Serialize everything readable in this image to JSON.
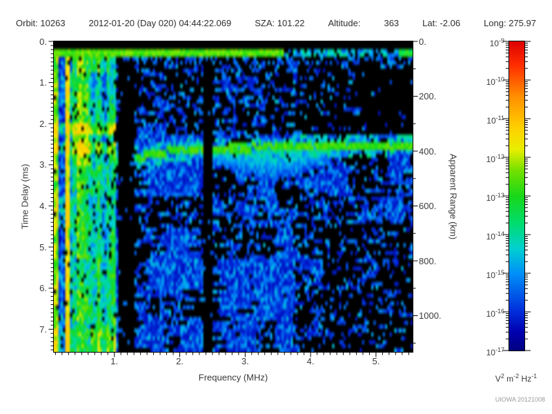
{
  "header": {
    "segments": [
      "Orbit: 10263",
      "2012-01-20 (Day 020) 04:44:22.069",
      "SZA: 101.22",
      "Altitude:",
      "363",
      "Lat: -2.06",
      "Long: 275.97"
    ]
  },
  "credit": "UIOWA 20121008",
  "chart_data": {
    "type": "heatmap",
    "title": "",
    "xlabel": "Frequency (MHz)",
    "ylabel_left": "Time Delay (ms)",
    "ylabel_right": "Apparent Range (km)",
    "colorbar_units_parts": [
      [
        "V",
        "2"
      ],
      [
        "m",
        "-2"
      ],
      [
        "Hz",
        "-1"
      ]
    ],
    "xlim_mhz": [
      0.075,
      5.56
    ],
    "ylim_ms": [
      0,
      7.55
    ],
    "y2lim_km": [
      0,
      1132
    ],
    "x_ticks": {
      "major": [
        1,
        2,
        3,
        4,
        5
      ],
      "labels": [
        "1.",
        "2.",
        "3.",
        "4.",
        "5."
      ],
      "minor_step": 0.1
    },
    "y_ticks": {
      "major": [
        0,
        1,
        2,
        3,
        4,
        5,
        6,
        7
      ],
      "labels": [
        "0.",
        "1.",
        "2.",
        "3.",
        "4.",
        "5.",
        "6.",
        "7."
      ],
      "minor_step": 0.1
    },
    "y2_ticks": {
      "major": [
        0,
        200,
        400,
        600,
        800,
        1000
      ],
      "labels": [
        "0.",
        "200.",
        "400.",
        "600.",
        "800.",
        "1000."
      ],
      "minor_step": 100
    },
    "colorbar_ticks": {
      "exponents": [
        -9,
        -10,
        -11,
        -12,
        -13,
        -14,
        -15,
        -16,
        -17
      ],
      "minor_mantissas": [
        2,
        3,
        4,
        5,
        6,
        7,
        8,
        9
      ]
    },
    "colormap_stops": [
      [
        0.0,
        "#000080"
      ],
      [
        0.06,
        "#0000b0"
      ],
      [
        0.13,
        "#0030dc"
      ],
      [
        0.25,
        "#0090f8"
      ],
      [
        0.33,
        "#00d0d0"
      ],
      [
        0.41,
        "#00dc70"
      ],
      [
        0.5,
        "#18d818"
      ],
      [
        0.58,
        "#70e000"
      ],
      [
        0.65,
        "#e8ee00"
      ],
      [
        0.72,
        "#ffd000"
      ],
      [
        0.82,
        "#ff9000"
      ],
      [
        0.92,
        "#ff3000"
      ],
      [
        1.0,
        "#dd0000"
      ]
    ],
    "seed": 10263,
    "features": {
      "background": "#000000",
      "top_blank_ms": 0.23,
      "surface_stripe": {
        "t_ms": [
          0.23,
          0.38
        ],
        "log_power": -12.6,
        "fade_above_mhz": 3.6,
        "faded_log_power": -14.6,
        "bright_right_edge_mhz": 5.35
      },
      "under_stripe_band": {
        "t_ms": [
          0.38,
          0.58
        ],
        "prob": 0.5,
        "log_power": -15.4
      },
      "dense_low_freq": {
        "f_max_mhz": 1.02,
        "base_log_power": -14.0,
        "noise_amp": 1.9,
        "black_hole_prob": 0.07,
        "column_bands": [
          [
            0.075,
            0.13,
            1.8
          ],
          [
            0.16,
            0.24,
            -1.2
          ],
          [
            0.26,
            0.315,
            2.8
          ],
          [
            0.44,
            0.52,
            1.1
          ]
        ],
        "time_bands": [
          [
            2.02,
            2.22,
            1.6
          ],
          [
            2.45,
            2.78,
            1.3
          ],
          [
            6.95,
            7.55,
            0.5
          ]
        ]
      },
      "vertical_gaps": [
        {
          "f_mhz": [
            1.06,
            1.32
          ],
          "keep_prob": 0.1
        },
        {
          "f_mhz": [
            2.37,
            2.5
          ],
          "keep_prob": 0.07
        }
      ],
      "echo_trace": {
        "f_start_mhz": 1.0,
        "t0_ms": 2.9,
        "t_mid_ms": 2.62,
        "mid_mhz": 2.1,
        "slope_after": -0.03,
        "half_width_ms": 0.1,
        "log_power": -12.8,
        "diffuse": {
          "f_mhz": [
            2.5,
            4.4
          ],
          "center_mhz": 3.4,
          "max_extent_ms": 0.85,
          "log_power_top": -13.6
        }
      },
      "speckle": {
        "prob_upper": 0.32,
        "prob_lower": 0.42,
        "split_ms": 2.3,
        "log_power_min": -16.3,
        "noise_amp": 1.8,
        "bright_dot_prob": 0.05,
        "bright_dot_log_power": -14.6,
        "sparse_regions": [
          {
            "f_mhz": [
              3.8,
              5.56
            ],
            "t_ms": [
              0,
              2.3
            ],
            "factor": 0.5
          },
          {
            "f_mhz": [
              4.6,
              5.56
            ],
            "t_ms": [
              0,
              2.3
            ],
            "factor": 0.7
          },
          {
            "f_mhz": [
              4.2,
              5.56
            ],
            "t_ms": [
              4.4,
              7.55
            ],
            "factor": 0.55
          },
          {
            "f_mhz": [
              1.32,
              2.4
            ],
            "t_ms": [
              0,
              7.55
            ],
            "factor": 1.15
          }
        ]
      }
    }
  }
}
